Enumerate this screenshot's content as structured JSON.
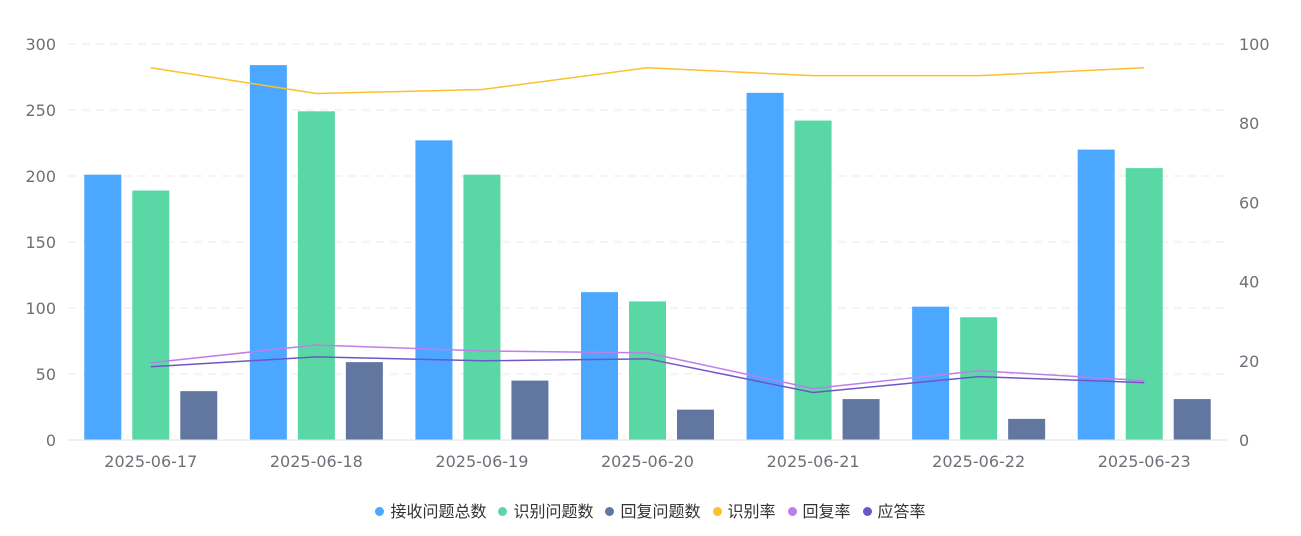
{
  "chart_data": {
    "type": "bar",
    "categories": [
      "2025-06-17",
      "2025-06-18",
      "2025-06-19",
      "2025-06-20",
      "2025-06-21",
      "2025-06-22",
      "2025-06-23"
    ],
    "y_left": {
      "min": 0,
      "max": 300,
      "ticks": [
        0,
        50,
        100,
        150,
        200,
        250,
        300
      ]
    },
    "y_right": {
      "min": 0,
      "max": 100,
      "ticks": [
        0,
        20,
        40,
        60,
        80,
        100
      ]
    },
    "bar_series": [
      {
        "name": "接收问题总数",
        "color": "#4ba7ff",
        "values": [
          201,
          284,
          227,
          112,
          263,
          101,
          220
        ]
      },
      {
        "name": "识别问题数",
        "color": "#59d8a5",
        "values": [
          189,
          249,
          201,
          105,
          242,
          93,
          206
        ]
      },
      {
        "name": "回复问题数",
        "color": "#61779f",
        "values": [
          37,
          59,
          45,
          23,
          31,
          16,
          31
        ]
      }
    ],
    "line_series": [
      {
        "name": "识别率",
        "color": "#fbc02d",
        "axis": "right",
        "values": [
          94,
          87.5,
          88.5,
          94,
          92,
          92,
          94
        ]
      },
      {
        "name": "回复率",
        "color": "#c07ee8",
        "axis": "right",
        "values": [
          19.5,
          24,
          22.5,
          22,
          13,
          17.5,
          15
        ]
      },
      {
        "name": "应答率",
        "color": "#6f56c8",
        "axis": "right",
        "values": [
          18.5,
          21,
          20,
          20.5,
          12,
          16,
          14.5
        ]
      }
    ],
    "legend_position": "bottom",
    "grid": "dashed-horizontal"
  }
}
